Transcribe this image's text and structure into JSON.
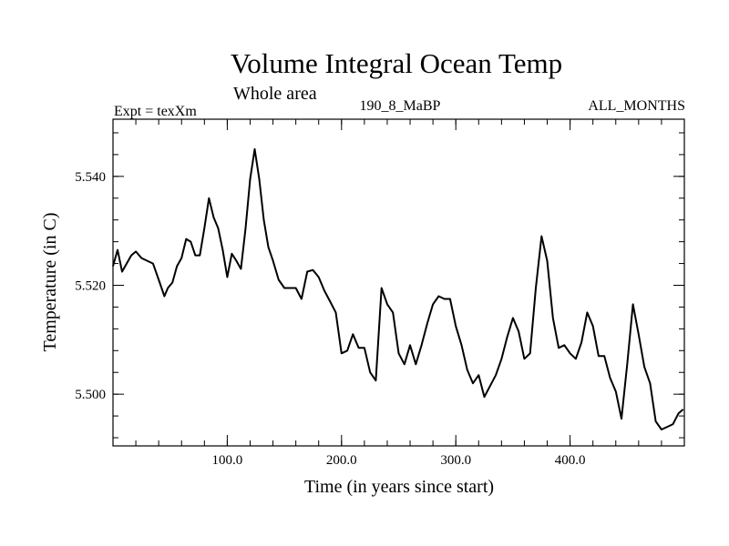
{
  "chart_data": {
    "type": "line",
    "title": "Volume Integral Ocean Temp",
    "subtitle": "Whole area",
    "annotations": {
      "left": "Expt = texXm",
      "center": "190_8_MaBP",
      "right": "ALL_MONTHS"
    },
    "xlabel": "Time (in years since start)",
    "ylabel": "Temperature (in C)",
    "xlim": [
      0,
      500
    ],
    "ylim": [
      5.4905,
      5.5505
    ],
    "x_ticks": [
      100,
      200,
      300,
      400
    ],
    "x_tick_labels": [
      "100.0",
      "200.0",
      "300.0",
      "400.0"
    ],
    "x_minor_step": 20,
    "y_ticks": [
      5.5,
      5.52,
      5.54
    ],
    "y_tick_labels": [
      "5.500",
      "5.520",
      "5.540"
    ],
    "y_minor_step": 0.004,
    "grid": false,
    "series": [
      {
        "name": "Volume Integral Ocean Temp",
        "color": "#000000",
        "x": [
          0,
          4,
          8,
          12,
          16,
          20,
          25,
          30,
          35,
          40,
          45,
          48,
          52,
          56,
          60,
          64,
          68,
          72,
          76,
          80,
          84,
          88,
          92,
          96,
          100,
          104,
          108,
          112,
          116,
          120,
          124,
          128,
          132,
          136,
          140,
          145,
          150,
          155,
          160,
          165,
          170,
          175,
          180,
          185,
          190,
          195,
          200,
          205,
          210,
          215,
          220,
          225,
          230,
          235,
          240,
          245,
          250,
          255,
          260,
          265,
          270,
          275,
          280,
          285,
          290,
          295,
          300,
          305,
          310,
          315,
          320,
          325,
          330,
          335,
          340,
          345,
          350,
          355,
          360,
          365,
          370,
          375,
          380,
          385,
          390,
          395,
          400,
          405,
          410,
          415,
          420,
          425,
          430,
          435,
          440,
          445,
          450,
          455,
          460,
          465,
          470,
          475,
          480,
          485,
          490,
          495,
          499
        ],
        "values": [
          5.5235,
          5.5265,
          5.5225,
          5.524,
          5.5255,
          5.5262,
          5.525,
          5.5245,
          5.524,
          5.521,
          5.518,
          5.5195,
          5.5205,
          5.5235,
          5.525,
          5.5285,
          5.528,
          5.5255,
          5.5255,
          5.5305,
          5.536,
          5.5325,
          5.5305,
          5.5265,
          5.5215,
          5.5258,
          5.5245,
          5.523,
          5.5305,
          5.5395,
          5.545,
          5.5395,
          5.532,
          5.527,
          5.5245,
          5.521,
          5.5195,
          5.5195,
          5.5195,
          5.5175,
          5.5225,
          5.5228,
          5.5215,
          5.519,
          5.517,
          5.515,
          5.5075,
          5.508,
          5.511,
          5.5085,
          5.5085,
          5.504,
          5.5025,
          5.5195,
          5.5165,
          5.515,
          5.5075,
          5.5055,
          5.509,
          5.5055,
          5.509,
          5.513,
          5.5165,
          5.518,
          5.5175,
          5.5175,
          5.5125,
          5.509,
          5.5045,
          5.502,
          5.5035,
          5.4995,
          5.5015,
          5.5035,
          5.5065,
          5.5105,
          5.514,
          5.5115,
          5.5065,
          5.5075,
          5.5195,
          5.529,
          5.5245,
          5.514,
          5.5085,
          5.509,
          5.5075,
          5.5065,
          5.5095,
          5.515,
          5.5125,
          5.507,
          5.507,
          5.503,
          5.5005,
          5.4955,
          5.5055,
          5.5165,
          5.511,
          5.505,
          5.502,
          5.495,
          5.4935,
          5.494,
          5.4945,
          5.4965,
          5.4972
        ]
      }
    ]
  }
}
